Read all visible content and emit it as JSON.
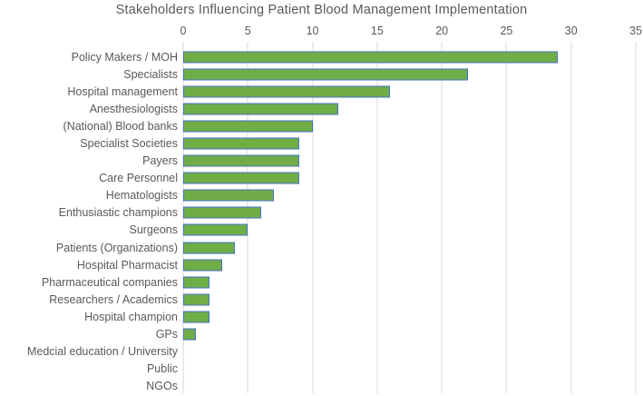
{
  "chart_data": {
    "type": "bar",
    "orientation": "horizontal",
    "title": "Stakeholders Influencing Patient Blood Management Implementation",
    "categories": [
      "Policy Makers / MOH",
      "Specialists",
      "Hospital management",
      "Anesthesiologists",
      "(National) Blood banks",
      "Specialist Societies",
      "Payers",
      "Care Personnel",
      "Hematologists",
      "Enthusiastic champions",
      "Surgeons",
      "Patients (Organizations)",
      "Hospital Pharmacist",
      "Pharmaceutical companies",
      "Researchers / Academics",
      "Hospital champion",
      "GPs",
      "Medcial education / University",
      "Public",
      "NGOs"
    ],
    "values": [
      29,
      22,
      16,
      12,
      10,
      9,
      9,
      9,
      7,
      6,
      5,
      4,
      3,
      2,
      2,
      2,
      1,
      0,
      0,
      0
    ],
    "x_ticks": [
      0,
      5,
      10,
      15,
      20,
      25,
      30,
      35
    ],
    "xlim": [
      0,
      35
    ],
    "axis_position": "top",
    "grid": true,
    "legend": "none",
    "colors": {
      "bar_fill": "#70AD47",
      "bar_border": "#4472C4",
      "gridline": "#D9D9D9",
      "text": "#595959"
    }
  }
}
